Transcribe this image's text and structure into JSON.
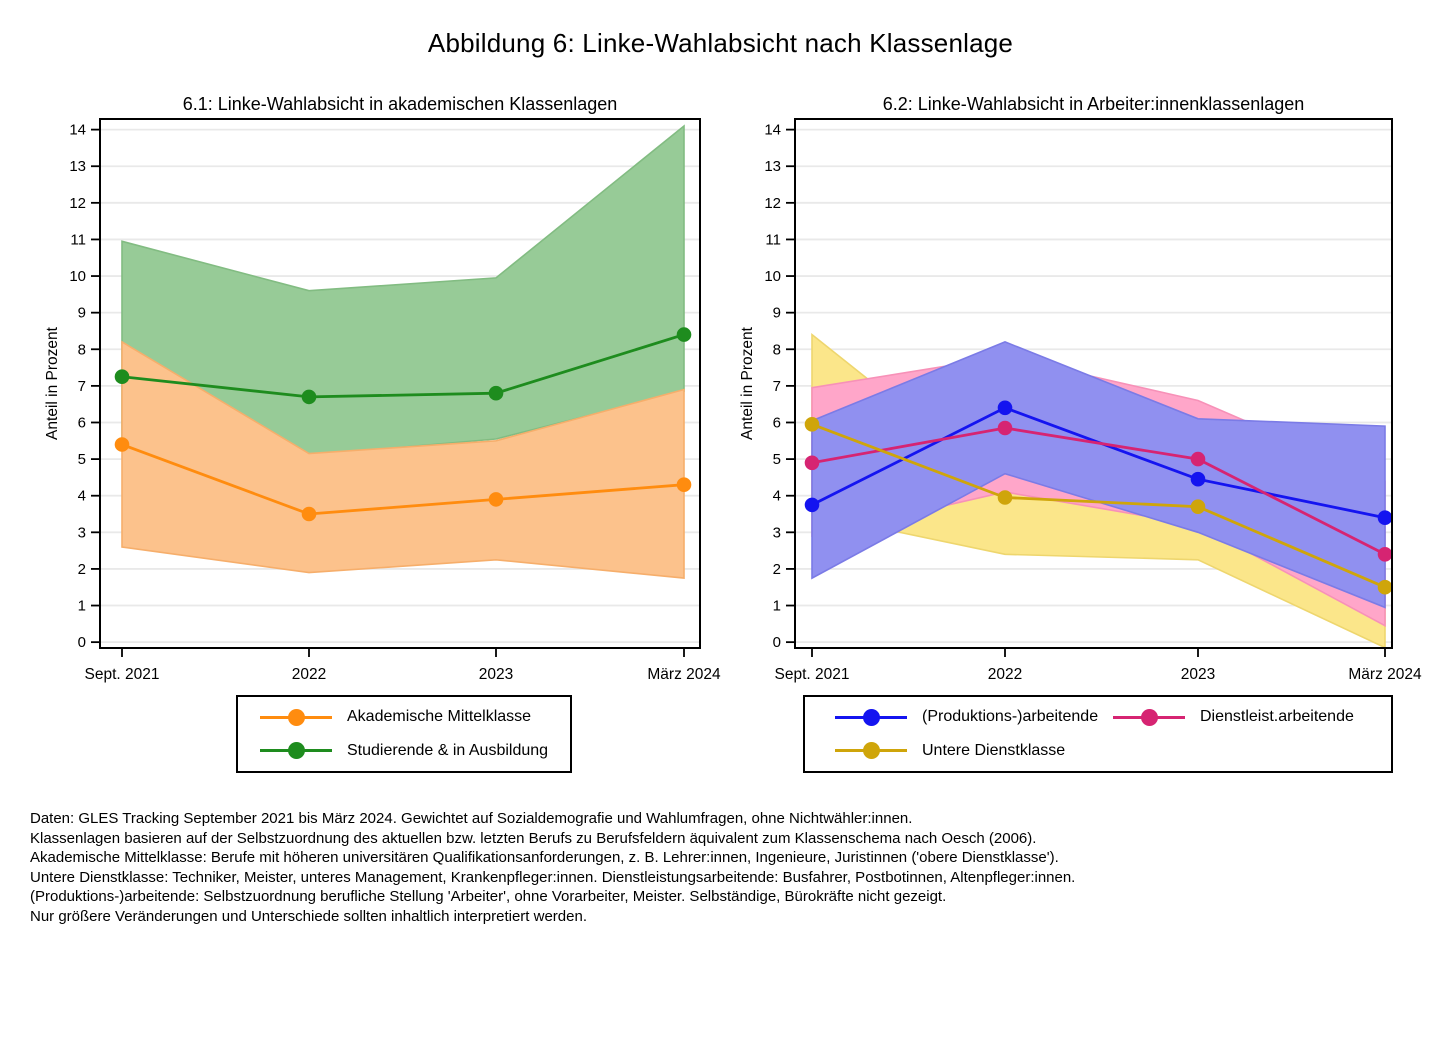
{
  "figure": {
    "title": "Abbildung 6: Linke-Wahlabsicht nach Klassenlage",
    "background": "#FFFFFF",
    "grid_color": "#E9E9E9",
    "axis_color": "#000000"
  },
  "chart_data": [
    {
      "type": "area-line",
      "title": "6.1: Linke-Wahlabsicht in akademischen Klassenlagen",
      "ylabel": "Anteil in Prozent",
      "categories": [
        "Sept. 2021",
        "2022",
        "2023",
        "März 2024"
      ],
      "ylim": [
        0,
        14
      ],
      "ytick_step": 1,
      "grid": true,
      "legend_position": "below",
      "series": [
        {
          "name": "Akademische Mittelklasse",
          "color": "#FF8C0F",
          "band_color": "#FCC28C",
          "band_edge_color": "#F6AE6B",
          "values": [
            5.4,
            3.5,
            3.9,
            4.3
          ],
          "band_upper": [
            8.2,
            5.15,
            5.5,
            6.9
          ],
          "band_lower": [
            2.6,
            1.9,
            2.25,
            1.75
          ]
        },
        {
          "name": "Studierende & in Ausbildung",
          "color": "#1E8C1E",
          "band_color": "#97CB97",
          "band_edge_color": "#82BC82",
          "values": [
            7.25,
            6.7,
            6.8,
            8.4
          ],
          "band_upper": [
            10.95,
            9.6,
            9.95,
            14.1
          ],
          "band_lower": [
            5.25,
            5.1,
            5.55,
            6.85
          ]
        }
      ]
    },
    {
      "type": "area-line",
      "title": "6.2: Linke-Wahlabsicht in Arbeiter:innenklassenlagen",
      "ylabel": "Anteil in Prozent",
      "categories": [
        "Sept. 2021",
        "2022",
        "2023",
        "März 2024"
      ],
      "ylim": [
        0,
        14
      ],
      "ytick_step": 1,
      "grid": true,
      "legend_position": "below",
      "series": [
        {
          "name": "(Produktions-)arbeitende",
          "color": "#1414F0",
          "band_color": "#9090F0",
          "band_edge_color": "#7B7BE6",
          "values": [
            3.75,
            6.4,
            4.45,
            3.4
          ],
          "band_upper": [
            6.05,
            8.2,
            6.1,
            5.9
          ],
          "band_lower": [
            1.75,
            4.6,
            3.0,
            0.95
          ]
        },
        {
          "name": "Dienstleist.arbeitende",
          "color": "#D62472",
          "band_color": "#FFA6C9",
          "band_edge_color": "#F791B8",
          "values": [
            4.9,
            5.85,
            5.0,
            2.4
          ],
          "band_upper": [
            6.95,
            7.8,
            6.6,
            4.4
          ],
          "band_lower": [
            2.9,
            4.1,
            3.2,
            0.45
          ]
        },
        {
          "name": "Untere Dienstklasse",
          "color": "#CFA50A",
          "band_color": "#FBE68A",
          "band_edge_color": "#EED66E",
          "values": [
            5.95,
            3.95,
            3.7,
            1.5
          ],
          "band_upper": [
            8.4,
            4.2,
            5.15,
            3.0
          ],
          "band_lower": [
            3.5,
            2.4,
            2.25,
            -0.15
          ]
        }
      ]
    }
  ],
  "footnotes": [
    "Daten: GLES Tracking September 2021 bis März 2024. Gewichtet auf Sozialdemografie und Wahlumfragen, ohne Nichtwähler:innen.",
    "Klassenlagen basieren auf der Selbstzuordnung des aktuellen bzw. letzten Berufs zu Berufsfeldern äquivalent zum Klassenschema nach Oesch (2006).",
    "Akademische Mittelklasse: Berufe mit höheren universitären Qualifikationsanforderungen, z. B. Lehrer:innen, Ingenieure, Juristinnen ('obere Dienstklasse').",
    "Untere Dienstklasse: Techniker, Meister, unteres Management, Krankenpfleger:innen. Dienstleistungsarbeitende: Busfahrer, Postbotinnen, Altenpfleger:innen.",
    "(Produktions-)arbeitende: Selbstzuordnung berufliche Stellung 'Arbeiter', ohne Vorarbeiter, Meister. Selbständige, Bürokräfte nicht gezeigt.",
    "Nur größere Veränderungen und Unterschiede sollten inhaltlich interpretiert werden."
  ]
}
